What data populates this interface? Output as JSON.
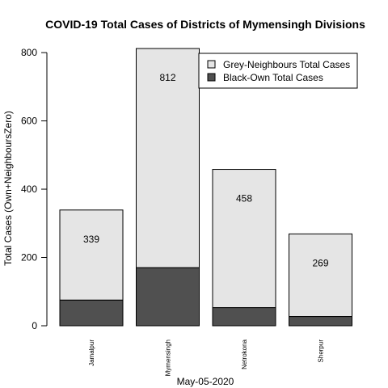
{
  "chart_data": {
    "type": "bar",
    "stacked": true,
    "title": "COVID-19 Total Cases of Districts of Mymensingh Divisions",
    "xlabel": "May-05-2020",
    "ylabel": "Total Cases (Own+NeighboursZero)",
    "ylim": [
      0,
      812
    ],
    "yticks": [
      0,
      200,
      400,
      600,
      800
    ],
    "categories": [
      "Jamalpur",
      "Mymensingh",
      "Netrokona",
      "Sherpur"
    ],
    "totals": [
      339,
      812,
      458,
      269
    ],
    "series": [
      {
        "name": "Black-Own Total Cases",
        "values": [
          75,
          170,
          53,
          27
        ],
        "color": "#505050"
      },
      {
        "name": "Grey-Neighbours Total Cases",
        "values": [
          264,
          642,
          405,
          242
        ],
        "color": "#e5e5e5"
      }
    ],
    "legend": {
      "position": "top-right",
      "order": [
        "Grey-Neighbours Total Cases",
        "Black-Own Total Cases"
      ]
    },
    "grid": false
  }
}
